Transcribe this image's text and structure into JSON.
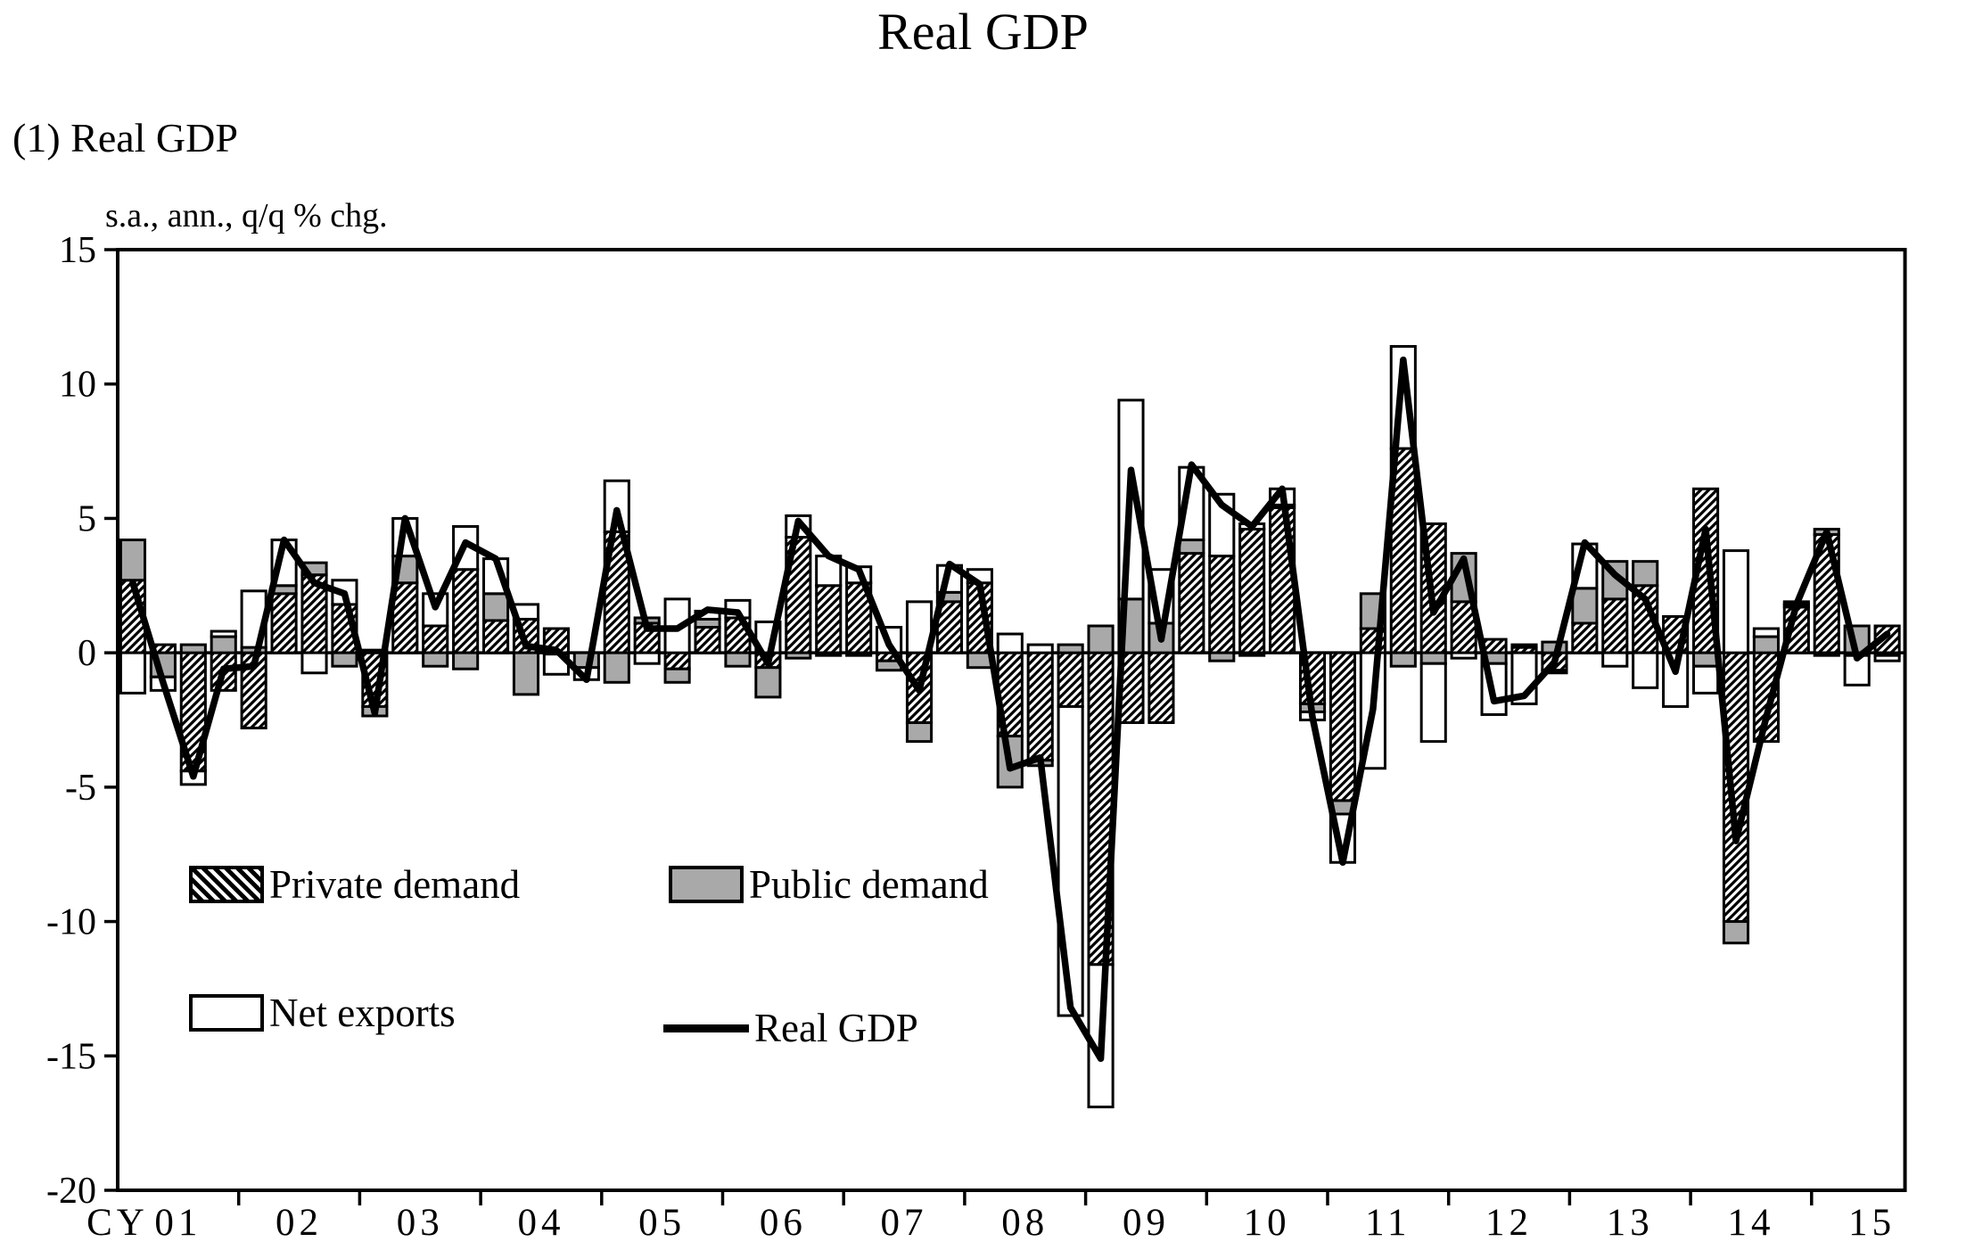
{
  "title": "Real GDP",
  "subtitle": "(1) Real GDP",
  "unit_label": "s.a., ann., q/q % chg.",
  "cy_label": "CY",
  "legend": {
    "private": "Private demand",
    "public": "Public demand",
    "net_exports": "Net exports",
    "gdp_line": "Real GDP"
  },
  "colors": {
    "public_fill": "#a9a9a9",
    "net_fill": "#ffffff",
    "hatch_color": "#000000",
    "line_color": "#000000",
    "frame_color": "#000000"
  },
  "chart_data": {
    "type": "bar",
    "subtype": "stacked-contribution-bars-with-line",
    "title": "Real GDP",
    "ylabel": "s.a., ann., q/q % chg.",
    "ylim": [
      -20,
      15
    ],
    "y_ticks": [
      15,
      10,
      5,
      0,
      -5,
      -10,
      -15,
      -20
    ],
    "grid": "off",
    "legend_position": "inside-lower-left",
    "x_year_labels": [
      "01",
      "02",
      "03",
      "04",
      "05",
      "06",
      "07",
      "08",
      "09",
      "10",
      "11",
      "12",
      "13",
      "14",
      "15"
    ],
    "categories": [
      "2001Q1",
      "2001Q2",
      "2001Q3",
      "2001Q4",
      "2002Q1",
      "2002Q2",
      "2002Q3",
      "2002Q4",
      "2003Q1",
      "2003Q2",
      "2003Q3",
      "2003Q4",
      "2004Q1",
      "2004Q2",
      "2004Q3",
      "2004Q4",
      "2005Q1",
      "2005Q2",
      "2005Q3",
      "2005Q4",
      "2006Q1",
      "2006Q2",
      "2006Q3",
      "2006Q4",
      "2007Q1",
      "2007Q2",
      "2007Q3",
      "2007Q4",
      "2008Q1",
      "2008Q2",
      "2008Q3",
      "2008Q4",
      "2009Q1",
      "2009Q2",
      "2009Q3",
      "2009Q4",
      "2010Q1",
      "2010Q2",
      "2010Q3",
      "2010Q4",
      "2011Q1",
      "2011Q2",
      "2011Q3",
      "2011Q4",
      "2012Q1",
      "2012Q2",
      "2012Q3",
      "2012Q4",
      "2013Q1",
      "2013Q2",
      "2013Q3",
      "2013Q4",
      "2014Q1",
      "2014Q2",
      "2014Q3",
      "2014Q4",
      "2015Q1",
      "2015Q2",
      "2015Q3"
    ],
    "series": [
      {
        "name": "Private demand",
        "style": "hatched",
        "values": [
          2.7,
          0.3,
          -4.4,
          -1.4,
          -2.8,
          2.2,
          2.9,
          1.8,
          -2.0,
          2.6,
          1.0,
          3.1,
          1.2,
          1.25,
          0.9,
          0.0,
          4.5,
          1.1,
          -0.6,
          0.95,
          1.3,
          -0.55,
          4.3,
          2.5,
          2.6,
          -0.3,
          -2.6,
          1.9,
          2.6,
          -3.1,
          -4.0,
          -2.0,
          -11.6,
          -2.6,
          -2.6,
          3.7,
          3.6,
          4.6,
          5.4,
          -1.9,
          -5.5,
          0.9,
          7.6,
          4.8,
          1.9,
          0.5,
          0.2,
          -0.65,
          1.1,
          2.0,
          2.5,
          1.35,
          6.1,
          -10.0,
          -3.3,
          1.7,
          4.4,
          -0.1,
          1.0
        ]
      },
      {
        "name": "Public demand",
        "style": "gray",
        "values": [
          1.5,
          -0.9,
          0.3,
          0.6,
          0.2,
          0.3,
          0.45,
          -0.5,
          -0.35,
          1.0,
          -0.5,
          -0.6,
          1.0,
          -1.55,
          -0.05,
          -0.55,
          -1.1,
          0.2,
          -0.5,
          0.3,
          -0.5,
          -1.1,
          -0.2,
          -0.1,
          -0.1,
          -0.35,
          -0.7,
          0.35,
          -0.55,
          -1.9,
          -0.2,
          0.3,
          1.0,
          2.0,
          1.1,
          0.5,
          -0.3,
          -0.1,
          0.1,
          -0.3,
          -0.5,
          1.3,
          -0.5,
          -0.4,
          1.8,
          -0.4,
          0.1,
          0.4,
          1.3,
          1.4,
          0.9,
          0.0,
          -0.5,
          -0.8,
          0.6,
          0.1,
          0.2,
          1.0,
          -0.1
        ]
      },
      {
        "name": "Net exports",
        "style": "white",
        "values": [
          -1.5,
          -0.5,
          -0.5,
          0.2,
          2.1,
          1.7,
          -0.75,
          0.9,
          0.1,
          1.4,
          1.2,
          1.6,
          1.3,
          0.55,
          -0.75,
          -0.45,
          1.9,
          -0.4,
          2.0,
          0.3,
          0.65,
          1.15,
          0.8,
          1.1,
          0.6,
          0.95,
          1.9,
          1.0,
          0.5,
          0.7,
          0.3,
          -11.5,
          -5.3,
          7.4,
          2.0,
          2.7,
          2.3,
          0.2,
          0.6,
          -0.3,
          -1.8,
          -4.3,
          3.8,
          -2.9,
          -0.2,
          -1.9,
          -1.9,
          -0.1,
          1.65,
          -0.5,
          -1.3,
          -2.0,
          -1.0,
          3.8,
          0.3,
          0.1,
          -0.1,
          -1.1,
          -0.2
        ]
      },
      {
        "name": "Real GDP",
        "style": "line",
        "values": [
          2.6,
          -1.1,
          -4.6,
          -0.6,
          -0.5,
          4.2,
          2.6,
          2.2,
          -2.25,
          5.0,
          1.7,
          4.1,
          3.5,
          0.25,
          0.1,
          -1.0,
          5.3,
          0.9,
          0.9,
          1.6,
          1.5,
          -0.4,
          4.9,
          3.6,
          3.1,
          0.3,
          -1.4,
          3.3,
          2.55,
          -4.3,
          -3.9,
          -13.2,
          -15.1,
          6.8,
          0.5,
          7.0,
          5.5,
          4.7,
          6.1,
          -2.4,
          -7.8,
          -2.1,
          10.9,
          1.5,
          3.5,
          -1.8,
          -1.6,
          -0.35,
          4.1,
          2.9,
          2.0,
          -0.7,
          4.6,
          -7.0,
          -2.4,
          1.8,
          4.5,
          -0.2,
          0.7
        ]
      }
    ]
  }
}
